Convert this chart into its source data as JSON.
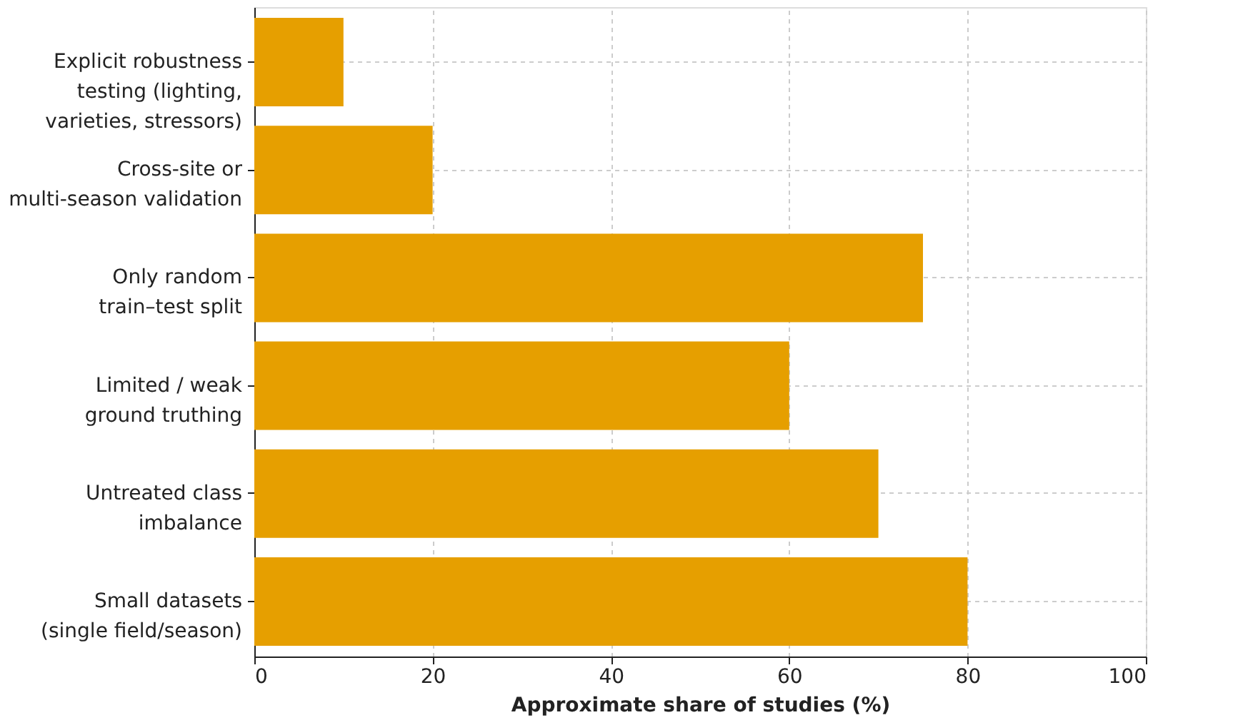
{
  "chart_data": {
    "type": "bar",
    "orientation": "horizontal",
    "xlabel": "Approximate share of studies (%)",
    "categories": [
      "Explicit robustness\ntesting (lighting,\nvarieties, stressors)",
      "Cross-site or\nmulti-season validation",
      "Only random\ntrain–test split",
      "Limited / weak\nground truthing",
      "Untreated class\nimbalance",
      "Small datasets\n(single field/season)"
    ],
    "values": [
      10,
      20,
      75,
      60,
      70,
      80
    ],
    "color": "#e69f00",
    "xlim": [
      0,
      100
    ],
    "xticks": [
      0,
      20,
      40,
      60,
      80,
      100
    ],
    "grid": true
  }
}
